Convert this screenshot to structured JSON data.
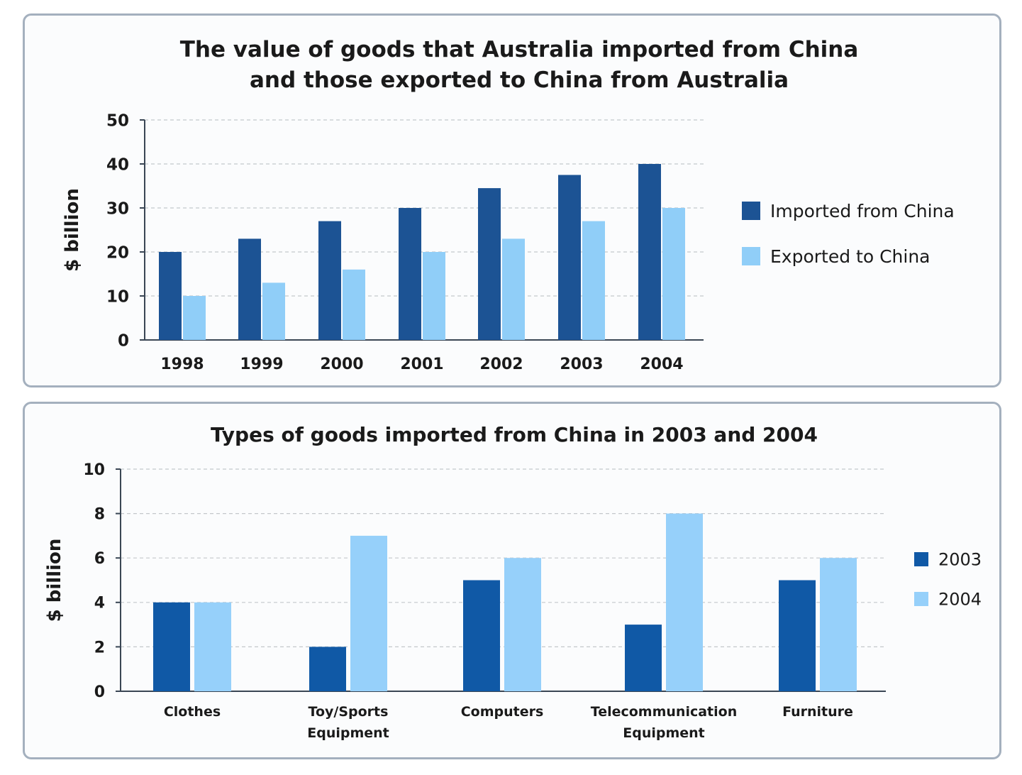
{
  "chart_data": [
    {
      "type": "bar",
      "title_lines": [
        "The value of goods that Australia imported from China",
        "and those exported to China from Australia"
      ],
      "ylabel": "$ billion",
      "xlabel": "",
      "ylim": [
        0,
        50
      ],
      "yticks": [
        0,
        10,
        20,
        30,
        40,
        50
      ],
      "grid": true,
      "legend_position": "right",
      "categories": [
        "1998",
        "1999",
        "2000",
        "2001",
        "2002",
        "2003",
        "2004"
      ],
      "series": [
        {
          "name": "Imported from China",
          "color": "#1c5394",
          "values": [
            20,
            23,
            27,
            30,
            34.5,
            37.5,
            40
          ]
        },
        {
          "name": "Exported to China",
          "color": "#90cef8",
          "values": [
            10,
            13,
            16,
            20,
            23,
            27,
            30
          ]
        }
      ]
    },
    {
      "type": "bar",
      "title_lines": [
        "Types of goods imported from China in 2003 and 2004"
      ],
      "ylabel": "$ billion",
      "xlabel": "",
      "ylim": [
        0,
        10
      ],
      "yticks": [
        0,
        2,
        4,
        6,
        8,
        10
      ],
      "grid": true,
      "legend_position": "right",
      "categories": [
        [
          "Clothes"
        ],
        [
          "Toy/Sports",
          "Equipment"
        ],
        [
          "Computers"
        ],
        [
          "Telecommunication",
          "Equipment"
        ],
        [
          "Furniture"
        ]
      ],
      "series": [
        {
          "name": "2003",
          "color": "#1059a6",
          "values": [
            4,
            2,
            5,
            3,
            5
          ]
        },
        {
          "name": "2004",
          "color": "#96d0fa",
          "values": [
            4,
            7,
            6,
            8,
            6
          ]
        }
      ]
    }
  ]
}
